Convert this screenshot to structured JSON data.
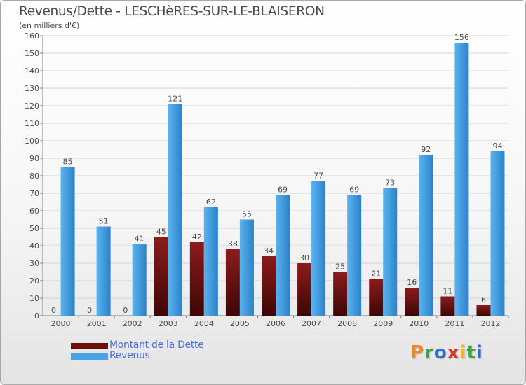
{
  "title": "Revenus/Dette - LESCHèRES-SUR-LE-BLAISERON",
  "subtitle": "(en milliers d'€)",
  "brand": "Proxiti",
  "colors": {
    "dette_top": "#8c1c1c",
    "dette_bottom": "#3e0606",
    "revenus_top": "#5ab3ee",
    "revenus_bottom": "#2c82c9",
    "axis": "#808080",
    "grid": "#d4d4d4",
    "text": "#4a4a4a",
    "legend_text": "#4a6ee0"
  },
  "legend": [
    {
      "label": "Montant de la Dette",
      "color": "#6a0e0e"
    },
    {
      "label": "Revenus",
      "color": "#4aa3e6"
    }
  ],
  "chart_data": {
    "type": "bar",
    "categories": [
      "2000",
      "2001",
      "2002",
      "2003",
      "2004",
      "2005",
      "2006",
      "2007",
      "2008",
      "2009",
      "2010",
      "2011",
      "2012"
    ],
    "series": [
      {
        "name": "Montant de la Dette",
        "values": [
          0,
          0,
          0,
          45,
          42,
          38,
          34,
          30,
          25,
          21,
          16,
          11,
          6
        ]
      },
      {
        "name": "Revenus",
        "values": [
          85,
          51,
          41,
          121,
          62,
          55,
          69,
          77,
          69,
          73,
          92,
          156,
          94
        ]
      }
    ],
    "ylim": [
      0,
      160
    ],
    "yticks": [
      0,
      10,
      20,
      30,
      40,
      50,
      60,
      70,
      80,
      90,
      100,
      110,
      120,
      130,
      140,
      150,
      160
    ],
    "grid": true,
    "legend_position": "bottom-left",
    "data_labels": true
  }
}
